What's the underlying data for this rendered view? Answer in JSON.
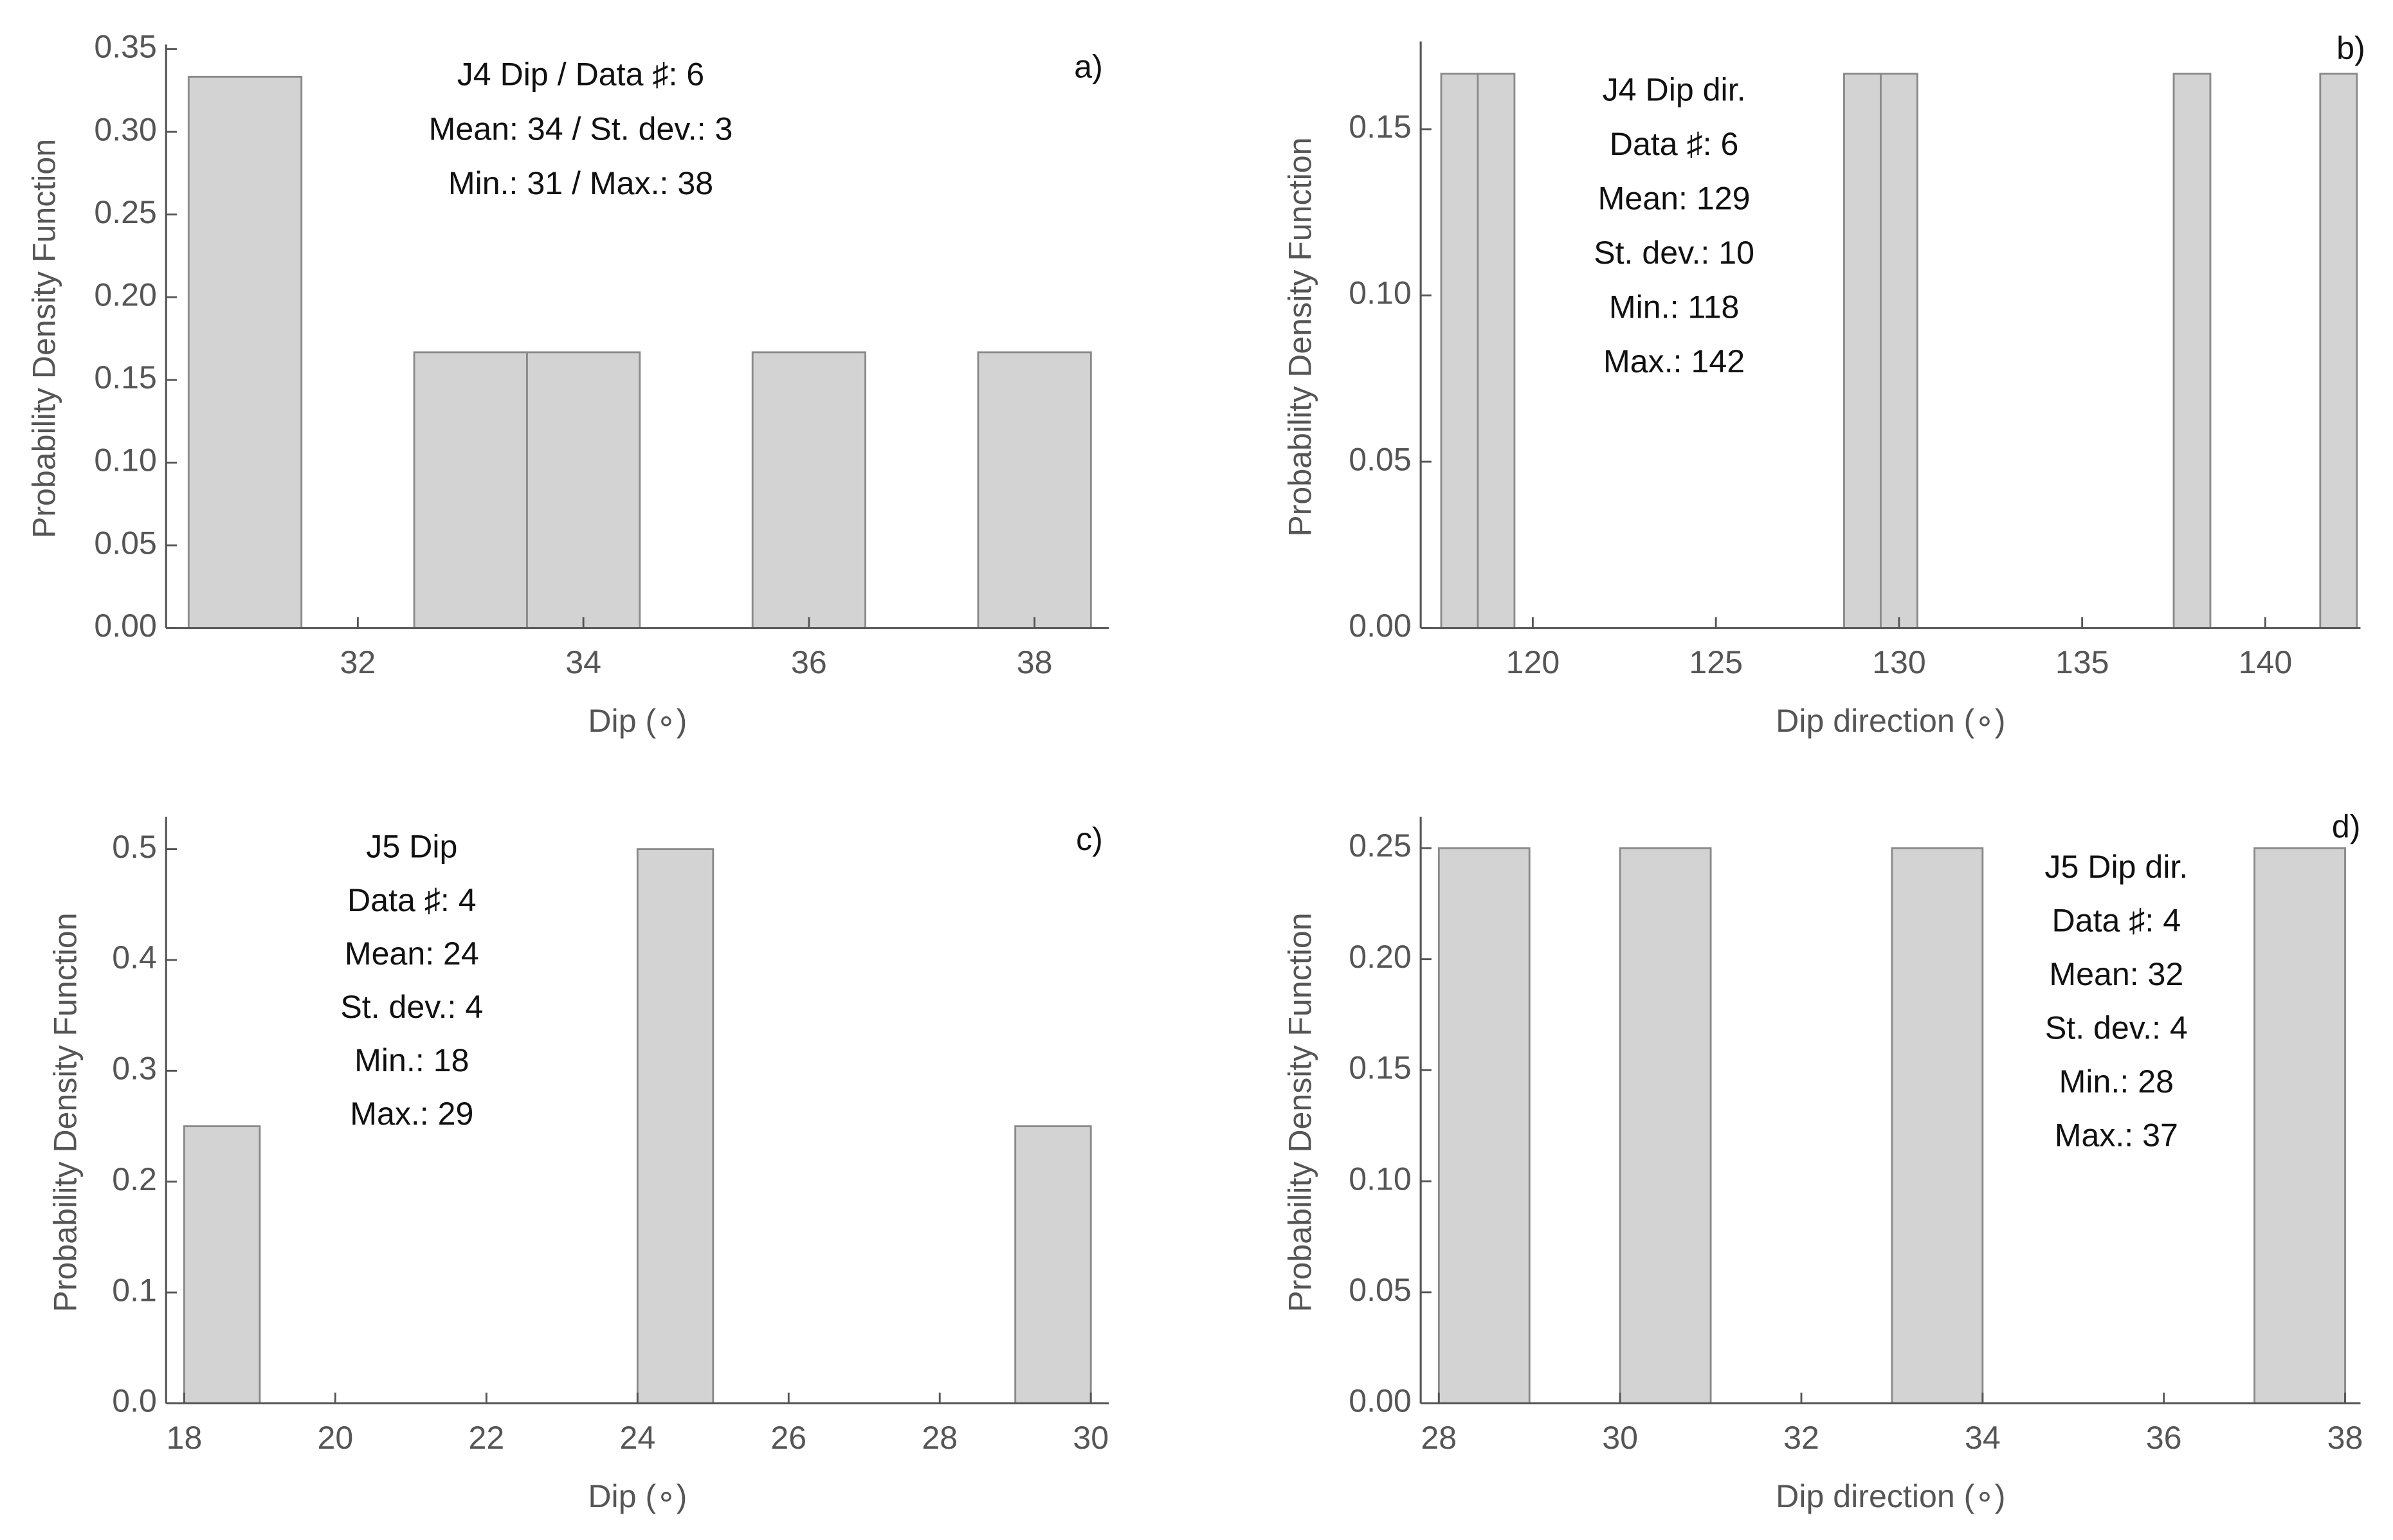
{
  "chart_data": [
    {
      "type": "histogram",
      "label": "a)",
      "annotation": [
        "J4 Dip / Data ♯: 6",
        "Mean: 34 / St. dev.: 3",
        "Min.: 31 / Max.: 38"
      ],
      "xlabel": "Dip (∘)",
      "ylabel": "Probability Density Function",
      "color": "#d3d3d3",
      "bins": [
        30.5,
        31.5,
        32.5,
        33.5,
        34.5,
        35.5,
        36.5,
        37.5,
        38.5
      ],
      "values": [
        0.3333,
        0,
        0.1667,
        0.1667,
        0,
        0.1667,
        0,
        0.1667
      ],
      "xlim": [
        30.3,
        38.66
      ],
      "xticks": [
        32,
        34,
        36,
        38
      ],
      "ylim": [
        0,
        0.35
      ],
      "yticks": [
        {
          "value": 0,
          "label": "0.00"
        },
        0.05,
        {
          "value": 0.1,
          "label": "0.10"
        },
        0.15,
        {
          "value": 0.2,
          "label": "0.20"
        },
        0.25,
        {
          "value": 0.3,
          "label": "0.30"
        },
        0.35
      ]
    },
    {
      "type": "histogram",
      "label": "b)",
      "annotation": [
        "J4 Dip dir.",
        "Data ♯: 6",
        "Mean: 129",
        "St. dev.: 10",
        "Min.: 118",
        "Max.: 142"
      ],
      "xlabel": "Dip direction (∘)",
      "ylabel": "Probability Density Function",
      "color": "#d3d3d3",
      "bins": [
        117.5,
        118.5,
        119.5,
        120.5,
        121.5,
        122.5,
        123.5,
        124.5,
        125.5,
        126.5,
        127.5,
        128.5,
        129.5,
        130.5,
        131.5,
        132.5,
        133.5,
        134.5,
        135.5,
        136.5,
        137.5,
        138.5,
        139.5,
        140.5,
        141.5,
        142.5
      ],
      "values": [
        0.1667,
        0.1667,
        0,
        0,
        0,
        0,
        0,
        0,
        0,
        0,
        0,
        0.1667,
        0.1667,
        0,
        0,
        0,
        0,
        0,
        0,
        0,
        0.1667,
        0,
        0,
        0,
        0.1667
      ],
      "xlim": [
        116.94,
        142.6
      ],
      "xticks": [
        120,
        125,
        130,
        135,
        140
      ],
      "ylim": [
        0,
        0.175
      ],
      "yticks": [
        {
          "value": 0,
          "label": "0.00"
        },
        0.05,
        {
          "value": 0.1,
          "label": "0.10"
        },
        0.15
      ]
    },
    {
      "type": "histogram",
      "label": "c)",
      "annotation": [
        "J5 Dip",
        "Data ♯: 4",
        "Mean: 24",
        "St. dev.: 4",
        "Min.: 18",
        "Max.: 29"
      ],
      "xlabel": "Dip (∘)",
      "ylabel": "Probability Density Function",
      "color": "#d3d3d3",
      "bins": [
        18,
        19,
        20,
        21,
        22,
        23,
        24,
        25,
        26,
        27,
        28,
        29,
        30
      ],
      "values": [
        0.25,
        0,
        0,
        0,
        0,
        0,
        0.5,
        0,
        0,
        0,
        0,
        0.25
      ],
      "xlim": [
        17.76,
        30.24
      ],
      "xticks": [
        18,
        20,
        22,
        24,
        26,
        28,
        30
      ],
      "ylim": [
        0,
        0.525
      ],
      "yticks": [
        {
          "value": 0,
          "label": "0.0"
        },
        0.1,
        0.2,
        0.3,
        0.4,
        0.5
      ]
    },
    {
      "type": "histogram",
      "label": "d)",
      "annotation": [
        "J5 Dip dir.",
        "Data ♯: 4",
        "Mean: 32",
        "St. dev.: 4",
        "Min.: 28",
        "Max.: 37"
      ],
      "xlabel": "Dip direction (∘)",
      "ylabel": "Probability Density Function",
      "color": "#d3d3d3",
      "bins": [
        28,
        29,
        30,
        31,
        32,
        33,
        34,
        35,
        36,
        37,
        38
      ],
      "values": [
        0.25,
        0,
        0.25,
        0,
        0,
        0.25,
        0,
        0,
        0,
        0.25
      ],
      "xlim": [
        27.8,
        38.17
      ],
      "xticks": [
        28,
        30,
        32,
        34,
        36,
        38
      ],
      "ylim": [
        0,
        0.262
      ],
      "yticks": [
        {
          "value": 0,
          "label": "0.00"
        },
        0.05,
        {
          "value": 0.1,
          "label": "0.10"
        },
        0.15,
        {
          "value": 0.2,
          "label": "0.20"
        },
        0.25
      ]
    }
  ]
}
